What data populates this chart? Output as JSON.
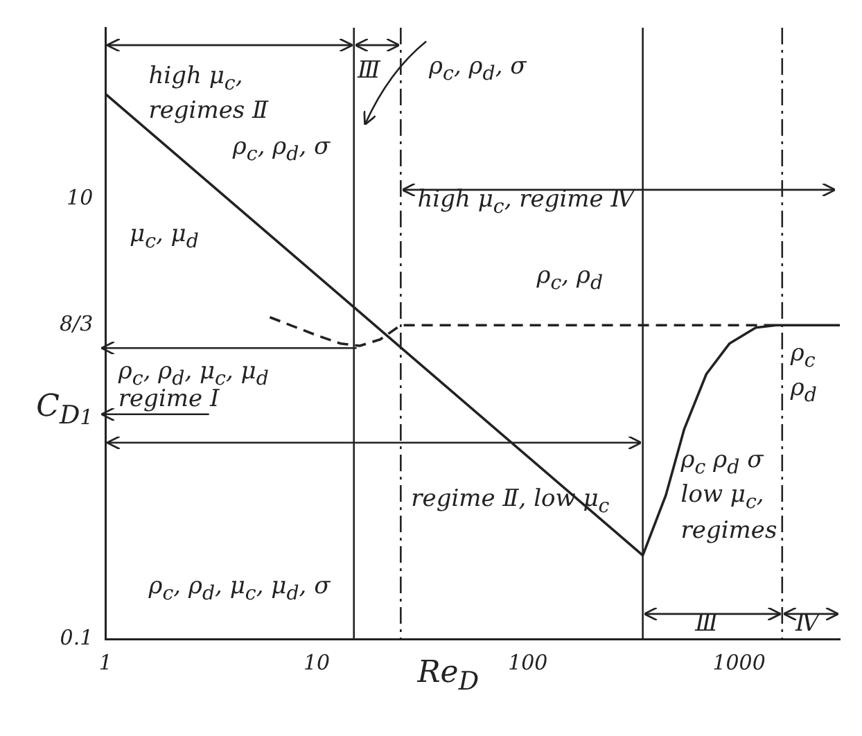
{
  "chart_data": {
    "type": "line",
    "xlabel": "Re$_{D}$",
    "ylabel": "C$_{D}$",
    "log": "xy",
    "xlim": [
      1,
      3000
    ],
    "ylim": [
      0.1,
      60
    ],
    "xticks": [
      1,
      10,
      100,
      1000
    ],
    "yticks": [
      {
        "value": 0.1,
        "label": "0.1"
      },
      1,
      {
        "value": 2.667,
        "label": "8/3"
      },
      10
    ],
    "grid": false,
    "legend": false,
    "marker": "none",
    "series": [
      {
        "color": "#222222",
        "line_style": "solid",
        "x": [
          1,
          350,
          450,
          550,
          700,
          900,
          1200,
          1500,
          3000
        ],
        "values": [
          30,
          0.24,
          0.45,
          0.9,
          1.6,
          2.2,
          2.6,
          2.667,
          2.667
        ]
      },
      {
        "color": "#222222",
        "line_style": "dashed",
        "x": [
          6,
          10,
          13,
          16,
          20,
          25,
          1500
        ],
        "values": [
          2.9,
          2.4,
          2.2,
          2.15,
          2.3,
          2.667,
          2.667
        ]
      }
    ],
    "ref_lines": [
      {
        "axis": "x",
        "value": 15,
        "color": "#222222",
        "line_style": "solid"
      },
      {
        "axis": "x",
        "value": 25,
        "color": "#222222",
        "line_style": "dashed"
      },
      {
        "axis": "x",
        "value": 350,
        "color": "#222222",
        "line_style": "solid"
      },
      {
        "axis": "x",
        "value": 1600,
        "color": "#222222",
        "line_style": "dashed"
      }
    ],
    "annotations": [
      "high μ$_{c}$, regimes Ⅱ",
      "Ⅲ",
      "ρ$_{c}$, ρ$_{d}$, σ",
      "μ$_{c}$, μ$_{d}$",
      "ρ$_{c}$, ρ$_{d}$, σ",
      "high μ$_{c}$, regime Ⅳ",
      "ρ$_{c}$, ρ$_{d}$",
      "ρ$_{c}$, ρ$_{d}$, μ$_{c}$, μ$_{d}$",
      "regime Ⅰ",
      "regime Ⅱ, low μ$_{c}$",
      "ρ$_{c}$, ρ$_{d}$, μ$_{c}$, μ$_{d}$, σ",
      "ρ$_{c}$ ρ$_{d}$ σ low μ$_{c}$, regimes",
      "Ⅲ",
      "Ⅳ",
      "ρ$_{c}$ ρ$_{d}$"
    ]
  }
}
